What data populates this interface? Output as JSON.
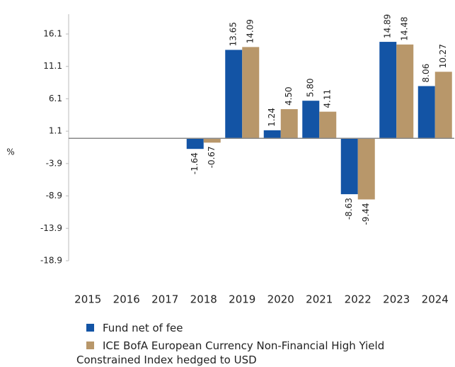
{
  "chart_data": {
    "type": "bar",
    "ylabel": "%",
    "categories": [
      "2015",
      "2016",
      "2017",
      "2018",
      "2019",
      "2020",
      "2021",
      "2022",
      "2023",
      "2024"
    ],
    "series": [
      {
        "name": "Fund net of fee",
        "color": "#1354a5",
        "values": [
          null,
          null,
          null,
          -1.64,
          13.65,
          1.24,
          5.8,
          -8.63,
          14.89,
          8.06
        ],
        "value_labels": [
          null,
          null,
          null,
          "-1.64",
          "13.65",
          "1.24",
          "5.80",
          "-8.63",
          "14.89",
          "8.06"
        ]
      },
      {
        "name": "ICE BofA European Currency Non-Financial High Yield Constrained Index hedged to USD",
        "color": "#b8976a",
        "values": [
          null,
          null,
          null,
          -0.67,
          14.09,
          4.5,
          4.11,
          -9.44,
          14.48,
          10.27
        ],
        "value_labels": [
          null,
          null,
          null,
          "-0.67",
          "14.09",
          "4.50",
          "4.11",
          "-9.44",
          "14.48",
          "10.27"
        ]
      }
    ],
    "ylim": [
      -18.9,
      16.1
    ],
    "yticks": [
      -18.9,
      -13.9,
      -8.9,
      -3.9,
      1.1,
      6.1,
      11.1,
      16.1
    ],
    "grid": false
  }
}
